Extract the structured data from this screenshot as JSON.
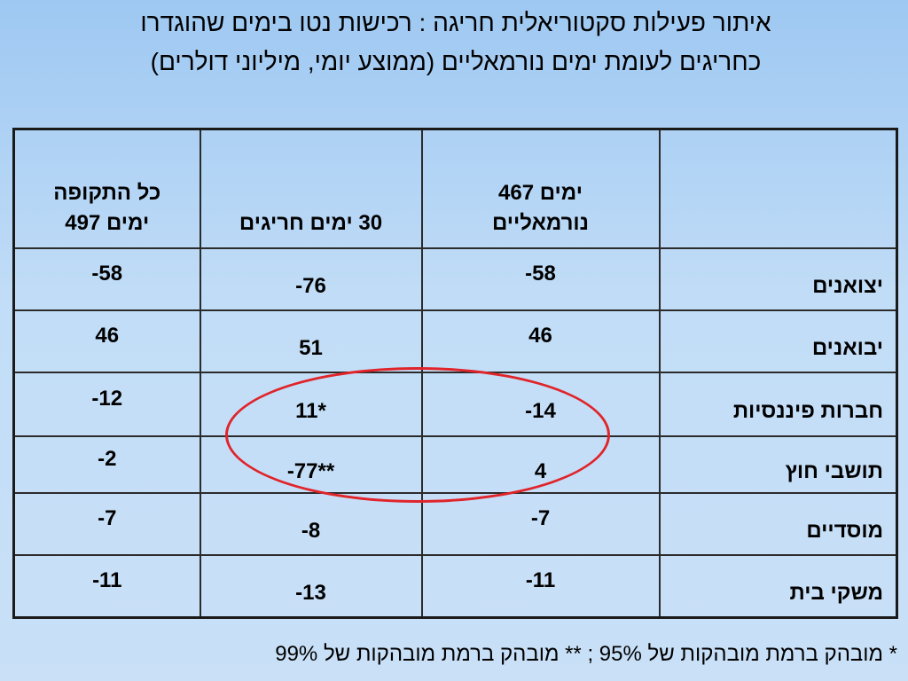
{
  "title": {
    "line1": "איתור פעילות סקטוריאלית חריגה : רכישות נטו בימים שהוגדרו",
    "line2": "כחריגים לעומת ימים נורמאליים (ממוצע יומי, מיליוני דולרים)"
  },
  "table": {
    "headers": {
      "label": "",
      "normal": [
        "467 ימים",
        "נורמאליים"
      ],
      "abnormal": "30 ימים חריגים",
      "total": [
        "כל התקופה",
        "497 ימים"
      ]
    },
    "rows": [
      {
        "label": "יצואנים",
        "normal": "-58",
        "abnormal": "-76",
        "total": "-58"
      },
      {
        "label": "יבואנים",
        "normal": "46",
        "abnormal": "51",
        "total": "46"
      },
      {
        "label": "חברות פיננסיות",
        "normal": "-14",
        "abnormal": "11*",
        "total": "-12"
      },
      {
        "label": "תושבי חוץ",
        "normal": "4",
        "abnormal": "-77**",
        "total": "-2"
      },
      {
        "label": "מוסדיים",
        "normal": "-7",
        "abnormal": "-8",
        "total": "-7"
      },
      {
        "label": "משקי בית",
        "normal": "-11",
        "abnormal": "-13",
        "total": "-11"
      }
    ]
  },
  "footnote": {
    "part1": "* מובהק ברמת מובהקות של 95%",
    "separator": " ; ",
    "part2": "** מובהק ברמת מובהקות של 99%"
  },
  "colors": {
    "highlight_circle": "#e0242a",
    "background_top": "#9ec8f2",
    "background_bottom": "#c9e0f7"
  }
}
